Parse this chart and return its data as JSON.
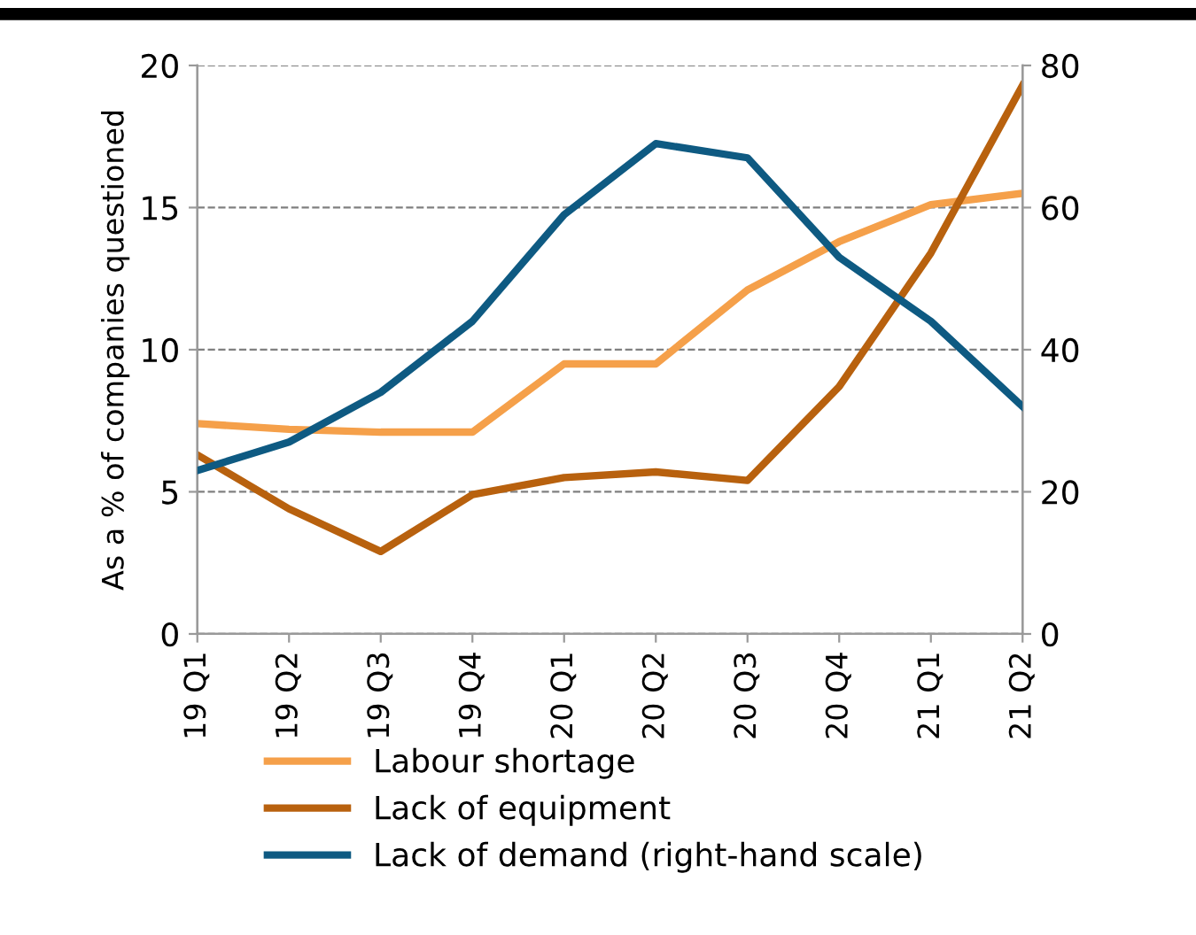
{
  "chart_data": {
    "type": "line",
    "ylabel": "As a % of companies questioned",
    "categories": [
      "19 Q1",
      "19 Q2",
      "19 Q3",
      "19 Q4",
      "20 Q1",
      "20 Q2",
      "20 Q3",
      "20 Q4",
      "21 Q1",
      "21 Q2"
    ],
    "series": [
      {
        "name": "Labour shortage",
        "color": "#f5a04a",
        "values": [
          7.4,
          7.2,
          7.1,
          7.1,
          9.5,
          9.5,
          12.1,
          13.8,
          15.1,
          15.5
        ]
      },
      {
        "name": "Lack of equipment",
        "color": "#b8610e",
        "values": [
          6.3,
          4.4,
          2.9,
          4.9,
          5.5,
          5.7,
          5.4,
          8.7,
          13.4,
          19.3
        ]
      },
      {
        "name": "Lack of demand (right-hand scale)",
        "color": "#0e5a82",
        "axis": "y2",
        "values": [
          23,
          27,
          34,
          44,
          59,
          69,
          67,
          53,
          44,
          32
        ]
      }
    ],
    "ylim": [
      0,
      20
    ],
    "yticks": [
      0,
      5,
      10,
      15,
      20
    ],
    "y2lim": [
      0,
      80
    ],
    "y2ticks": [
      0,
      20,
      40,
      60,
      80
    ],
    "grid": "y",
    "legend": "bottom",
    "marker": "none",
    "line_style": "solid"
  }
}
